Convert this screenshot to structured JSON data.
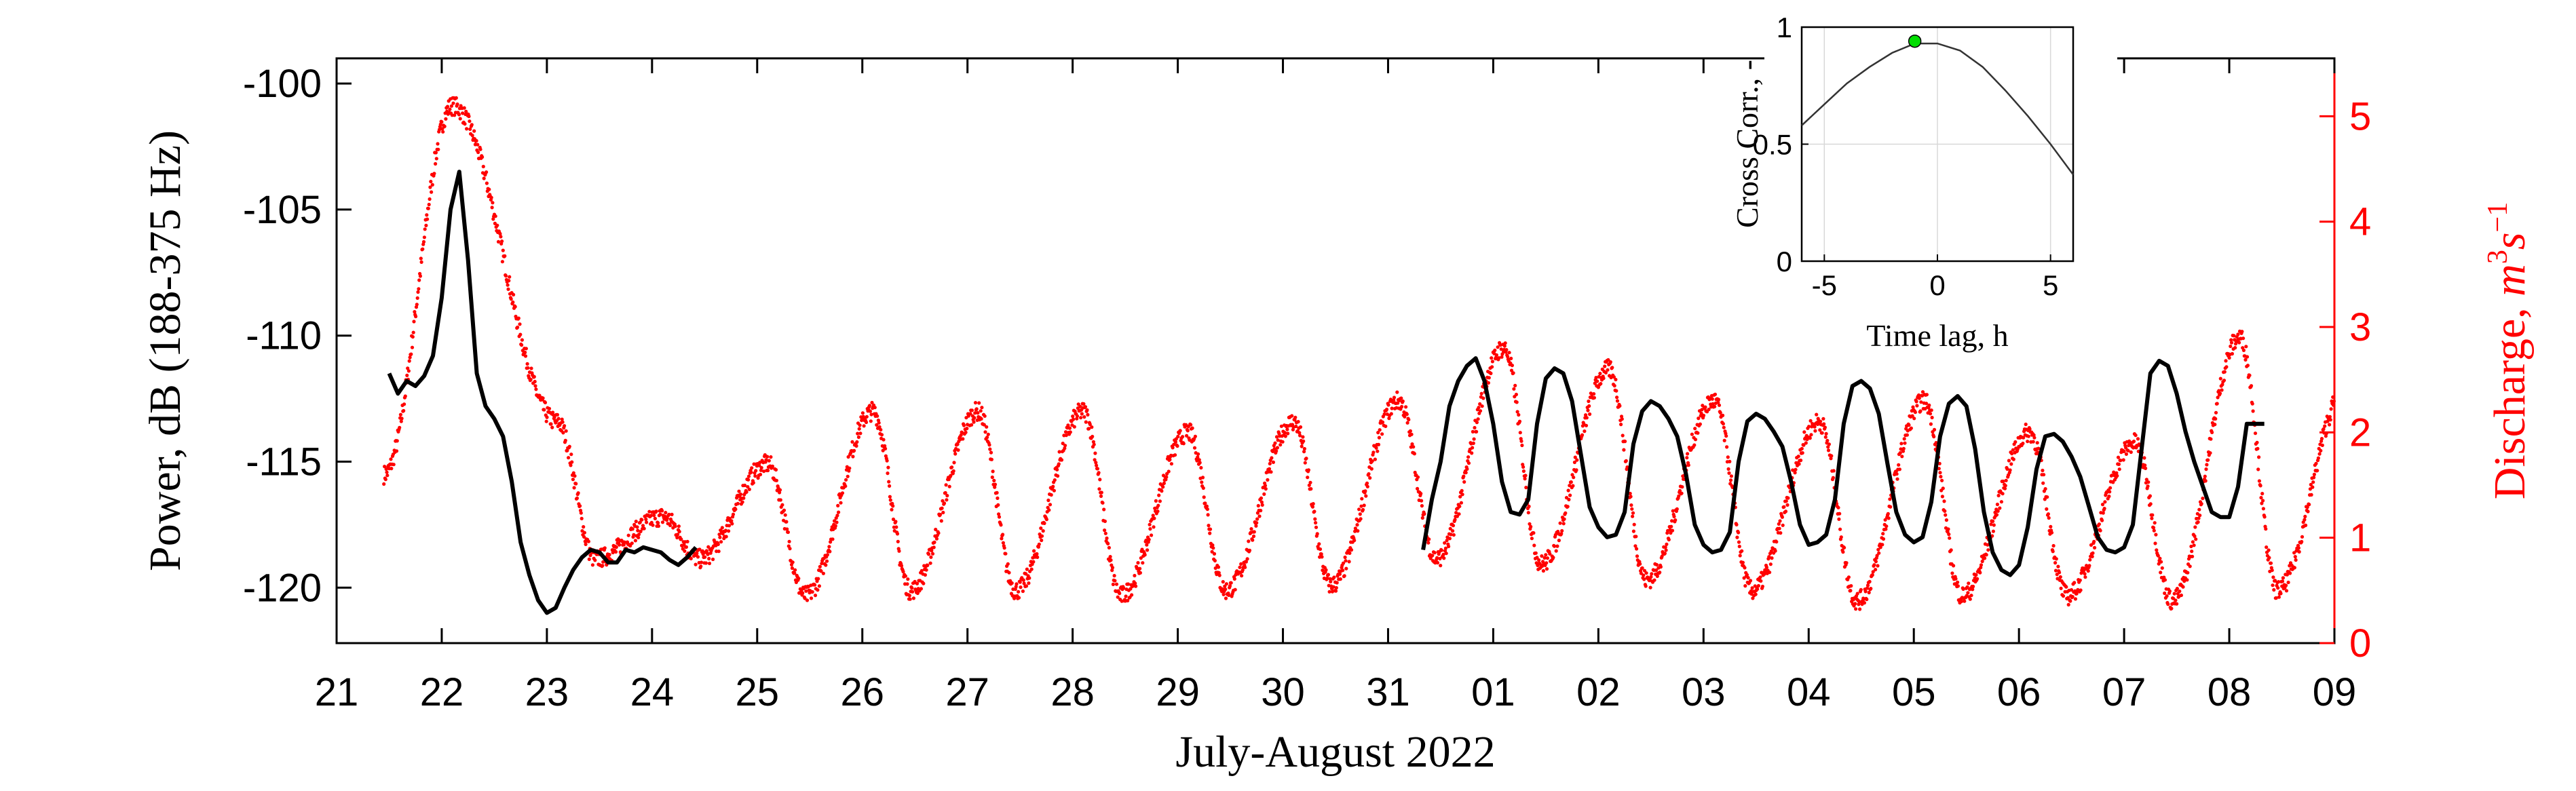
{
  "chart_data": [
    {
      "type": "scatter",
      "title": "",
      "xlabel": "July-August 2022",
      "ylabel_left": "Power, dB (188-375 Hz)",
      "ylabel_right_text": "Discharge, ",
      "ylabel_right_unit_base": "m",
      "ylabel_right_unit_exp1": "3",
      "ylabel_right_unit_base2": "s",
      "ylabel_right_unit_exp2": "−1",
      "x_tick_labels": [
        "21",
        "22",
        "23",
        "24",
        "25",
        "26",
        "27",
        "28",
        "29",
        "30",
        "31",
        "01",
        "02",
        "03",
        "04",
        "05",
        "06",
        "07",
        "08",
        "09"
      ],
      "x_range_days": [
        0,
        19
      ],
      "y_left_ticks": [
        "-100",
        "-105",
        "-110",
        "-115",
        "-120"
      ],
      "y_left_range": [
        -122.2,
        -99
      ],
      "y_right_ticks": [
        "0",
        "1",
        "2",
        "3",
        "4",
        "5"
      ],
      "y_right_range": [
        0,
        5.55
      ],
      "colors": {
        "power": "#000000",
        "discharge": "#ff0000"
      },
      "series": [
        {
          "name": "",
          "axis": "left",
          "color": "#000000",
          "segments": [
            {
              "x": [
                "2022-07-21 12:00",
                "2022-07-21 14:00",
                "2022-07-21 16:00",
                "2022-07-21 18:00",
                "2022-07-21 20:00",
                "2022-07-21 22:00",
                "2022-07-22 00:00",
                "2022-07-22 02:00",
                "2022-07-22 04:00",
                "2022-07-22 06:00",
                "2022-07-22 08:00",
                "2022-07-22 10:00",
                "2022-07-22 12:00",
                "2022-07-22 14:00",
                "2022-07-22 16:00",
                "2022-07-22 18:00",
                "2022-07-22 20:00",
                "2022-07-22 22:00",
                "2022-07-23 00:00",
                "2022-07-23 02:00",
                "2022-07-23 04:00",
                "2022-07-23 06:00",
                "2022-07-23 08:00",
                "2022-07-23 10:00",
                "2022-07-23 12:00",
                "2022-07-23 14:00",
                "2022-07-23 16:00",
                "2022-07-23 18:00",
                "2022-07-23 20:00",
                "2022-07-23 22:00",
                "2022-07-24 00:00",
                "2022-07-24 02:00",
                "2022-07-24 04:00",
                "2022-07-24 06:00",
                "2022-07-24 08:00",
                "2022-07-24 10:00"
              ],
              "y": [
                -111.5,
                -112.3,
                -111.8,
                -112.0,
                -111.6,
                -110.8,
                -108.5,
                -105.0,
                -103.5,
                -107.0,
                -111.5,
                -112.8,
                -113.3,
                -114.0,
                -115.8,
                -118.2,
                -119.5,
                -120.5,
                -121.0,
                -120.8,
                -120.0,
                -119.3,
                -118.8,
                -118.5,
                -118.6,
                -119.0,
                -119.0,
                -118.5,
                -118.6,
                -118.4,
                -118.5,
                -118.6,
                -118.9,
                -119.1,
                -118.8,
                -118.4
              ]
            },
            {
              "x": [
                "2022-07-31 08:00",
                "2022-07-31 10:00",
                "2022-07-31 12:00",
                "2022-07-31 14:00",
                "2022-07-31 16:00",
                "2022-07-31 18:00",
                "2022-07-31 20:00",
                "2022-07-31 22:00",
                "2022-08-01 00:00",
                "2022-08-01 02:00",
                "2022-08-01 04:00",
                "2022-08-01 06:00",
                "2022-08-01 08:00",
                "2022-08-01 10:00",
                "2022-08-01 12:00",
                "2022-08-01 14:00",
                "2022-08-01 16:00",
                "2022-08-01 18:00",
                "2022-08-01 20:00",
                "2022-08-01 22:00",
                "2022-08-02 00:00",
                "2022-08-02 02:00",
                "2022-08-02 04:00",
                "2022-08-02 06:00",
                "2022-08-02 08:00",
                "2022-08-02 10:00",
                "2022-08-02 12:00",
                "2022-08-02 14:00",
                "2022-08-02 16:00",
                "2022-08-02 18:00",
                "2022-08-02 20:00",
                "2022-08-02 22:00",
                "2022-08-03 00:00",
                "2022-08-03 02:00",
                "2022-08-03 04:00",
                "2022-08-03 06:00",
                "2022-08-03 08:00",
                "2022-08-03 10:00",
                "2022-08-03 12:00",
                "2022-08-03 14:00",
                "2022-08-03 16:00",
                "2022-08-03 18:00",
                "2022-08-03 20:00",
                "2022-08-03 22:00",
                "2022-08-04 00:00",
                "2022-08-04 02:00",
                "2022-08-04 04:00",
                "2022-08-04 06:00",
                "2022-08-04 08:00",
                "2022-08-04 10:00",
                "2022-08-04 12:00",
                "2022-08-04 14:00",
                "2022-08-04 16:00",
                "2022-08-04 18:00",
                "2022-08-04 20:00",
                "2022-08-04 22:00",
                "2022-08-05 00:00",
                "2022-08-05 02:00",
                "2022-08-05 04:00",
                "2022-08-05 06:00",
                "2022-08-05 08:00",
                "2022-08-05 10:00",
                "2022-08-05 12:00",
                "2022-08-05 14:00",
                "2022-08-05 16:00",
                "2022-08-05 18:00",
                "2022-08-05 20:00",
                "2022-08-05 22:00",
                "2022-08-06 00:00",
                "2022-08-06 02:00",
                "2022-08-06 04:00",
                "2022-08-06 06:00",
                "2022-08-06 08:00",
                "2022-08-06 10:00",
                "2022-08-06 12:00",
                "2022-08-06 14:00",
                "2022-08-06 16:00",
                "2022-08-06 18:00",
                "2022-08-06 20:00",
                "2022-08-06 22:00",
                "2022-08-07 00:00",
                "2022-08-07 02:00",
                "2022-08-07 04:00",
                "2022-08-07 06:00",
                "2022-08-07 08:00",
                "2022-08-07 10:00",
                "2022-08-07 12:00",
                "2022-08-07 14:00",
                "2022-08-07 16:00",
                "2022-08-07 18:00",
                "2022-08-07 20:00",
                "2022-08-07 22:00",
                "2022-08-08 00:00",
                "2022-08-08 02:00",
                "2022-08-08 04:00",
                "2022-08-08 06:00",
                "2022-08-08 08:00"
              ],
              "y": [
                -118.5,
                -116.5,
                -115.0,
                -112.8,
                -111.8,
                -111.2,
                -110.9,
                -111.8,
                -113.5,
                -115.8,
                -117.0,
                -117.1,
                -116.5,
                -113.5,
                -111.7,
                -111.3,
                -111.5,
                -112.6,
                -114.7,
                -116.8,
                -117.6,
                -118.0,
                -117.9,
                -117.0,
                -114.3,
                -113.0,
                -112.6,
                -112.8,
                -113.3,
                -114.0,
                -115.5,
                -117.5,
                -118.3,
                -118.6,
                -118.5,
                -117.8,
                -115.0,
                -113.4,
                -113.1,
                -113.3,
                -113.8,
                -114.4,
                -115.8,
                -117.5,
                -118.3,
                -118.2,
                -117.9,
                -116.5,
                -113.5,
                -112.0,
                -111.8,
                -112.1,
                -113.1,
                -115.1,
                -117.0,
                -117.9,
                -118.2,
                -118.0,
                -116.6,
                -114.0,
                -112.7,
                -112.4,
                -112.8,
                -114.5,
                -117.0,
                -118.6,
                -119.3,
                -119.5,
                -119.1,
                -117.6,
                -115.3,
                -114.0,
                -113.9,
                -114.2,
                -114.8,
                -115.6,
                -116.8,
                -118.0,
                -118.5,
                -118.6,
                -118.4,
                -117.5,
                -114.5,
                -111.5,
                -111.0,
                -111.2,
                -112.3,
                -113.8,
                -115.0,
                -116.0,
                -117.0,
                -117.2,
                -117.2,
                -116.0,
                -113.5,
                -113.5,
                -113.5
              ]
            }
          ]
        },
        {
          "name": "",
          "axis": "right",
          "color": "#ff0000",
          "description_of_pattern": "",
          "daily_peaks": [
            {
              "day": "2022-07-22",
              "peak": 5.1
            },
            {
              "day": "2022-07-23",
              "peak": 2.1
            },
            {
              "day": "2022-07-24",
              "peak": 1.2
            },
            {
              "day": "2022-07-25",
              "peak": 1.7
            },
            {
              "day": "2022-07-26",
              "peak": 2.2
            },
            {
              "day": "2022-07-27",
              "peak": 2.2
            },
            {
              "day": "2022-07-28",
              "peak": 2.2
            },
            {
              "day": "2022-07-29",
              "peak": 2.0
            },
            {
              "day": "2022-07-30",
              "peak": 2.1
            },
            {
              "day": "2022-07-31",
              "peak": 2.3
            },
            {
              "day": "2022-08-01",
              "peak": 2.8
            },
            {
              "day": "2022-08-02",
              "peak": 2.6
            },
            {
              "day": "2022-08-03",
              "peak": 2.3
            },
            {
              "day": "2022-08-04",
              "peak": 2.1
            },
            {
              "day": "2022-08-05",
              "peak": 2.3
            },
            {
              "day": "2022-08-06",
              "peak": 2.0
            },
            {
              "day": "2022-08-07",
              "peak": 1.9
            },
            {
              "day": "2022-08-08",
              "peak": 2.9
            },
            {
              "day": "2022-08-09",
              "peak": 2.4
            }
          ],
          "daily_troughs": [
            {
              "day": "2022-07-23",
              "trough": 0.8
            },
            {
              "day": "2022-07-24",
              "trough": 0.8
            },
            {
              "day": "2022-07-25",
              "trough": 0.45
            },
            {
              "day": "2022-07-26",
              "trough": 0.5
            },
            {
              "day": "2022-07-27",
              "trough": 0.5
            },
            {
              "day": "2022-07-28",
              "trough": 0.45
            },
            {
              "day": "2022-07-29",
              "trough": 0.5
            },
            {
              "day": "2022-07-30",
              "trough": 0.55
            },
            {
              "day": "2022-07-31",
              "trough": 0.8
            },
            {
              "day": "2022-08-01",
              "trough": 0.75
            },
            {
              "day": "2022-08-02",
              "trough": 0.6
            },
            {
              "day": "2022-08-03",
              "trough": 0.5
            },
            {
              "day": "2022-08-04",
              "trough": 0.4
            },
            {
              "day": "2022-08-05",
              "trough": 0.45
            },
            {
              "day": "2022-08-06",
              "trough": 0.45
            },
            {
              "day": "2022-08-07",
              "trough": 0.4
            },
            {
              "day": "2022-08-08",
              "trough": 0.5
            },
            {
              "day": "2022-08-09",
              "trough": 0.8
            }
          ]
        }
      ],
      "grid": false
    },
    {
      "type": "line",
      "title": "",
      "xlabel": "Time lag, h",
      "ylabel": "Cross Corr., -",
      "x_ticks": [
        "-5",
        "0",
        "5"
      ],
      "y_ticks": [
        "0",
        "0.5",
        "1"
      ],
      "xlim": [
        -6,
        6
      ],
      "ylim": [
        0,
        1
      ],
      "grid": true,
      "series": [
        {
          "name": "",
          "color": "#333333",
          "x": [
            -6,
            -5,
            -4,
            -3,
            -2,
            -1,
            0,
            1,
            2,
            3,
            4,
            5,
            6
          ],
          "y": [
            0.58,
            0.67,
            0.76,
            0.83,
            0.89,
            0.93,
            0.93,
            0.9,
            0.83,
            0.73,
            0.62,
            0.5,
            0.37
          ]
        }
      ],
      "marker": {
        "x": -1,
        "y": 0.94,
        "color": "#00dd00"
      }
    }
  ]
}
